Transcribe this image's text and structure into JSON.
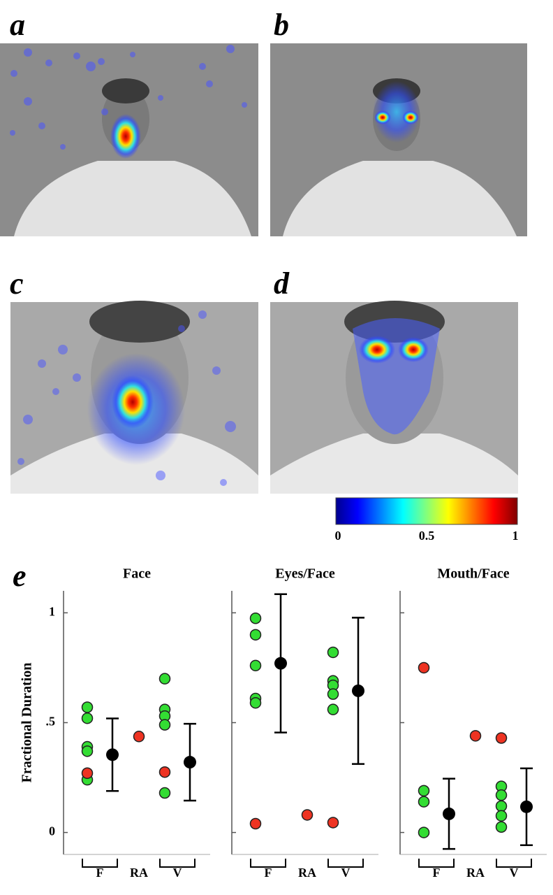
{
  "panels": [
    {
      "label": "a"
    },
    {
      "label": "b"
    },
    {
      "label": "c"
    },
    {
      "label": "d"
    },
    {
      "label": "e"
    }
  ],
  "colorbar": {
    "lim": [
      0,
      1
    ],
    "ticks": [
      0,
      0.5,
      1
    ]
  },
  "chart_data": [
    {
      "type": "dot",
      "title": "Face",
      "ylabel": "Fractional Duration",
      "ylim": [
        -0.1,
        1.1
      ],
      "yticks": [
        {
          "value": 0,
          "label": "0"
        },
        {
          "value": 0.5,
          "label": ".5"
        },
        {
          "value": 1,
          "label": "1"
        }
      ],
      "groups": [
        "F",
        "RA",
        "V"
      ],
      "F": {
        "points": [
          {
            "color": "#33dd33",
            "values": [
              0.57,
              0.52,
              0.39,
              0.37,
              0.24
            ]
          },
          {
            "color": "#ee3322",
            "values": [
              0.27
            ]
          }
        ],
        "mean": 0.354,
        "error": 0.165
      },
      "RA": {
        "points": [
          {
            "color": "#ee3322",
            "values": [
              0.437
            ]
          }
        ]
      },
      "V": {
        "points": [
          {
            "color": "#33dd33",
            "values": [
              0.7,
              0.56,
              0.53,
              0.49,
              0.18
            ]
          },
          {
            "color": "#ee3322",
            "values": [
              0.275
            ]
          }
        ],
        "mean": 0.32,
        "error": 0.175
      }
    },
    {
      "type": "dot",
      "title": "Eyes/Face",
      "ylim": [
        -0.1,
        1.1
      ],
      "yticks": [
        0,
        0.5,
        1
      ],
      "groups": [
        "F",
        "RA",
        "V"
      ],
      "F": {
        "points": [
          {
            "color": "#33dd33",
            "values": [
              0.975,
              0.9,
              0.76,
              0.61,
              0.59
            ]
          },
          {
            "color": "#ee3322",
            "values": [
              0.04
            ]
          }
        ],
        "mean": 0.77,
        "error": 0.315
      },
      "RA": {
        "points": [
          {
            "color": "#ee3322",
            "values": [
              0.08
            ]
          }
        ]
      },
      "V": {
        "points": [
          {
            "color": "#33dd33",
            "values": [
              0.82,
              0.69,
              0.67,
              0.63,
              0.56
            ]
          },
          {
            "color": "#ee3322",
            "values": [
              0.045
            ]
          }
        ],
        "mean": 0.645,
        "error": 0.333
      }
    },
    {
      "type": "dot",
      "title": "Mouth/Face",
      "ylim": [
        -0.1,
        1.1
      ],
      "yticks": [
        0,
        0.5,
        1
      ],
      "groups": [
        "F",
        "RA",
        "V"
      ],
      "F": {
        "points": [
          {
            "color": "#33dd33",
            "values": [
              0.19,
              0.14,
              0.0
            ]
          },
          {
            "color": "#ee3322",
            "values": [
              0.75
            ]
          }
        ],
        "mean": 0.085,
        "error": 0.16
      },
      "RA": {
        "points": [
          {
            "color": "#ee3322",
            "values": [
              0.44
            ]
          }
        ]
      },
      "V": {
        "points": [
          {
            "color": "#33dd33",
            "values": [
              0.21,
              0.17,
              0.12,
              0.076,
              0.025
            ]
          },
          {
            "color": "#ee3322",
            "values": [
              0.43
            ]
          }
        ],
        "mean": 0.117,
        "error": 0.175
      }
    }
  ]
}
